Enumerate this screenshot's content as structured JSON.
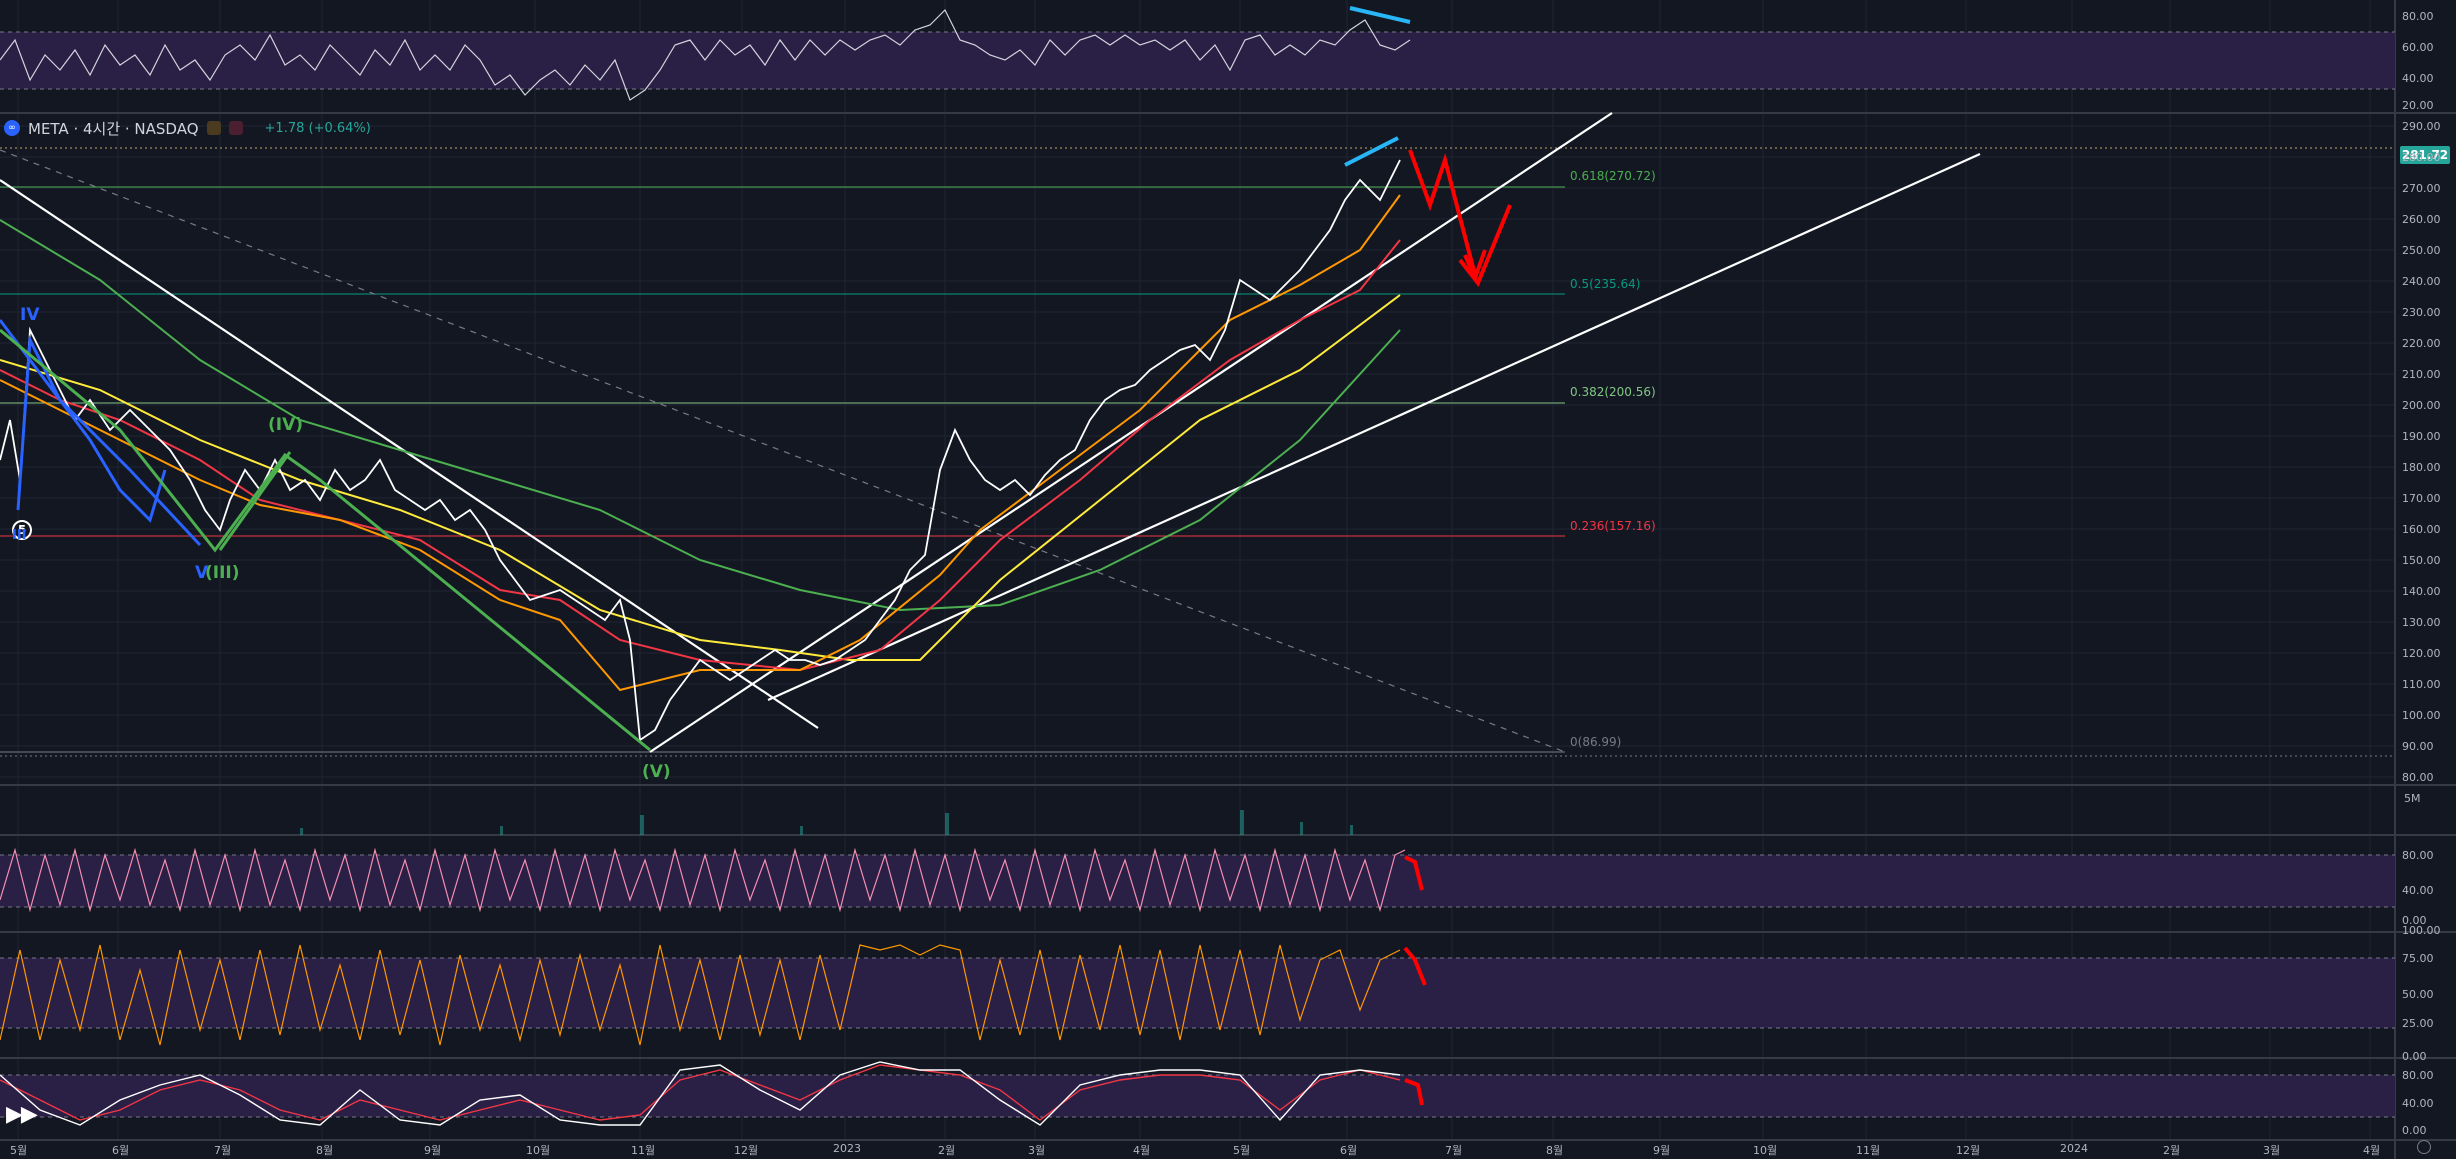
{
  "symbol": {
    "title": "META · 4시간 · NASDAQ",
    "change": "+1.78 (+0.64%)",
    "current_price": "281.72",
    "logo_text": "∞"
  },
  "price_axis": [
    "290.00",
    "280.00",
    "270.00",
    "260.00",
    "250.00",
    "240.00",
    "230.00",
    "220.00",
    "210.00",
    "200.00",
    "190.00",
    "180.00",
    "170.00",
    "160.00",
    "150.00",
    "140.00",
    "130.00",
    "120.00",
    "110.00",
    "100.00",
    "90.00",
    "80.00"
  ],
  "top_rsi_axis": [
    "80.00",
    "60.00",
    "40.00",
    "20.00"
  ],
  "volume_axis": "5M",
  "osc1_axis": [
    "80.00",
    "40.00",
    "0.00"
  ],
  "osc2_axis": [
    "100.00",
    "75.00",
    "50.00",
    "25.00",
    "0.00"
  ],
  "osc3_axis": [
    "80.00",
    "40.00",
    "0.00"
  ],
  "time_axis": [
    "5월",
    "6월",
    "7월",
    "8월",
    "9월",
    "10월",
    "11월",
    "12월",
    "2023",
    "2월",
    "3월",
    "4월",
    "5월",
    "6월",
    "7월",
    "8월",
    "9월",
    "10월",
    "11월",
    "12월",
    "2024",
    "2월",
    "3월",
    "4월"
  ],
  "fib_levels": [
    {
      "label": "0.618(270.72)",
      "color": "#4caf50"
    },
    {
      "label": "0.5(235.64)",
      "color": "#089981"
    },
    {
      "label": "0.382(200.56)",
      "color": "#81c784"
    },
    {
      "label": "0.236(157.16)",
      "color": "#f23645"
    },
    {
      "label": "0(86.99)",
      "color": "#787b86"
    }
  ],
  "wave_labels": {
    "iv_blue": "IV",
    "v_blue": "V",
    "iii_green": "(III)",
    "iv_green": "(IV)",
    "v_green": "(V)",
    "five": "5",
    "iii_blue": "III"
  },
  "colors": {
    "background": "#131722",
    "up": "#26a69a",
    "purple_band": "#2a1f45",
    "annotation_red": "#ff0000",
    "annotation_blue": "#29b6f6"
  }
}
